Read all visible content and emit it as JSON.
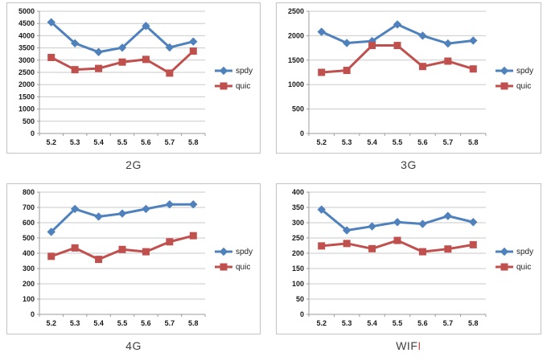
{
  "theme": {
    "background": "#ffffff",
    "grid_color": "#c9c9c9",
    "axis_color": "#9b9b9b",
    "tick_label_color": "#1a1a1a",
    "legend_text_color": "#222222",
    "title_color": "#3f3f3f",
    "spdy_color": "#4F81BD",
    "quic_color": "#C0504D"
  },
  "chart_data": [
    {
      "type": "line",
      "title": "2G",
      "title_main": "2G",
      "title_accent": "",
      "title_accent_color": "",
      "x_labels": [
        "5.2",
        "5.3",
        "5.4",
        "5.5",
        "5.6",
        "5.7",
        "5.8"
      ],
      "ylim": [
        0,
        5000
      ],
      "ytick_step": 500,
      "grid": true,
      "legend_position": "right",
      "series": [
        {
          "name": "spdy",
          "color": "#4F81BD",
          "marker": "diamond",
          "values": [
            4550,
            3690,
            3330,
            3510,
            4400,
            3520,
            3760
          ]
        },
        {
          "name": "quic",
          "color": "#C0504D",
          "marker": "square",
          "values": [
            3110,
            2610,
            2660,
            2920,
            3030,
            2470,
            3370
          ]
        }
      ]
    },
    {
      "type": "line",
      "title": "3G",
      "title_main": "3G",
      "title_accent": "",
      "title_accent_color": "",
      "x_labels": [
        "5.2",
        "5.3",
        "5.4",
        "5.5",
        "5.6",
        "5.7",
        "5.8"
      ],
      "ylim": [
        0,
        2500
      ],
      "ytick_step": 500,
      "grid": true,
      "legend_position": "right",
      "series": [
        {
          "name": "spdy",
          "color": "#4F81BD",
          "marker": "diamond",
          "values": [
            2080,
            1850,
            1890,
            2230,
            2000,
            1840,
            1900
          ]
        },
        {
          "name": "quic",
          "color": "#C0504D",
          "marker": "square",
          "values": [
            1250,
            1290,
            1800,
            1800,
            1370,
            1480,
            1320
          ]
        }
      ]
    },
    {
      "type": "line",
      "title": "4G",
      "title_main": "4G",
      "title_accent": "",
      "title_accent_color": "",
      "x_labels": [
        "5.2",
        "5.3",
        "5.4",
        "5.5",
        "5.6",
        "5.7",
        "5.8"
      ],
      "ylim": [
        0,
        800
      ],
      "ytick_step": 100,
      "grid": true,
      "legend_position": "right",
      "series": [
        {
          "name": "spdy",
          "color": "#4F81BD",
          "marker": "diamond",
          "values": [
            540,
            690,
            640,
            660,
            690,
            720,
            720
          ]
        },
        {
          "name": "quic",
          "color": "#C0504D",
          "marker": "square",
          "values": [
            380,
            435,
            360,
            425,
            410,
            475,
            515
          ]
        }
      ]
    },
    {
      "type": "line",
      "title": "WIFI",
      "title_main": "WIF",
      "title_accent": "I",
      "title_accent_color": "#C0504D",
      "x_labels": [
        "5.2",
        "5.3",
        "5.4",
        "5.5",
        "5.6",
        "5.7",
        "5.8"
      ],
      "ylim": [
        0,
        400
      ],
      "ytick_step": 50,
      "grid": true,
      "legend_position": "right",
      "series": [
        {
          "name": "spdy",
          "color": "#4F81BD",
          "marker": "diamond",
          "values": [
            343,
            275,
            288,
            302,
            296,
            322,
            302
          ]
        },
        {
          "name": "quic",
          "color": "#C0504D",
          "marker": "square",
          "values": [
            224,
            232,
            215,
            242,
            205,
            214,
            228
          ]
        }
      ]
    }
  ]
}
